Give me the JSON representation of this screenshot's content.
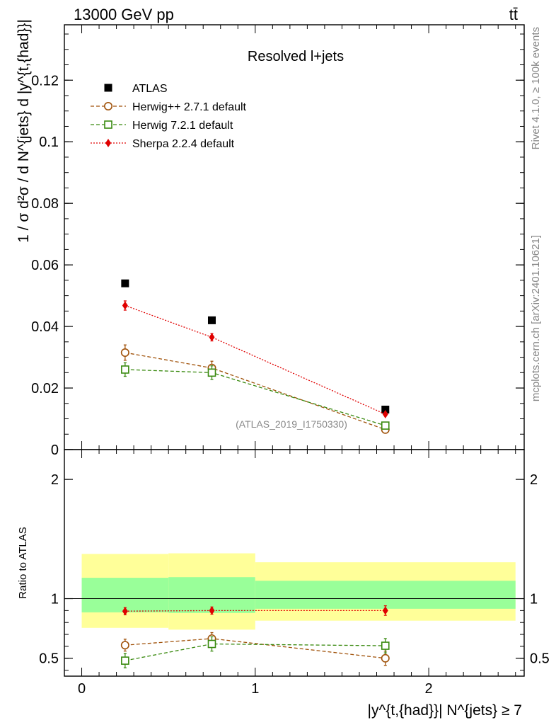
{
  "header": {
    "energy_label": "13000 GeV pp",
    "process_label": "tt̄",
    "side_rivet": "Rivet 4.1.0, ≥ 100k events",
    "side_mcplots": "mcplots.cern.ch [arXiv:2401.10621]",
    "analysis_label": "(ATLAS_2019_I1750330)"
  },
  "chart_data": [
    {
      "type": "line",
      "panel": "main",
      "title": "Resolved l+jets",
      "ylabel": "1 / σ d²σ / d N^{jets} d |y^{t,{had}}|",
      "xlim": [
        -0.1,
        2.55
      ],
      "ylim": [
        0,
        0.138
      ],
      "yticks": [
        0,
        0.02,
        0.04,
        0.06,
        0.08,
        0.1,
        0.12
      ],
      "ytick_labels": [
        "0",
        "0.02",
        "0.04",
        "0.06",
        "0.08",
        "0.1",
        "0.12"
      ],
      "x": [
        0.25,
        0.75,
        1.75
      ],
      "series": [
        {
          "name": "ATLAS",
          "values": [
            0.054,
            0.042,
            0.013
          ],
          "color": "#000000",
          "marker": "square-filled",
          "line": "none",
          "errors": [
            0.0008,
            0.0006,
            0.0004
          ]
        },
        {
          "name": "Herwig++ 2.7.1 default",
          "values": [
            0.0315,
            0.0265,
            0.0065
          ],
          "color": "#a0520a",
          "marker": "circle-open",
          "line": "dashed",
          "errors": [
            0.0025,
            0.0022,
            0.0008
          ]
        },
        {
          "name": "Herwig 7.2.1 default",
          "values": [
            0.026,
            0.025,
            0.0078
          ],
          "color": "#3a8a10",
          "marker": "square-open",
          "line": "dashed",
          "errors": [
            0.0022,
            0.0022,
            0.0008
          ]
        },
        {
          "name": "Sherpa 2.2.4 default",
          "values": [
            0.0468,
            0.0365,
            0.0115
          ],
          "color": "#e00000",
          "marker": "diamond-filled",
          "line": "dotted",
          "errors": [
            0.0015,
            0.0012,
            0.0005
          ]
        }
      ]
    },
    {
      "type": "line",
      "panel": "ratio",
      "ylabel": "Ratio to ATLAS",
      "xlabel": "|y^{t,{had}}| N^{jets} ≥ 7",
      "xlim": [
        -0.1,
        2.55
      ],
      "ylim": [
        0.35,
        2.25
      ],
      "yticks": [
        0.5,
        1,
        2
      ],
      "ytick_labels": [
        "0.5",
        "1",
        "2"
      ],
      "xticks": [
        0,
        1,
        2
      ],
      "xtick_labels": [
        "0",
        "1",
        "2"
      ],
      "x": [
        0.25,
        0.75,
        1.75
      ],
      "bins": [
        [
          0,
          0.5
        ],
        [
          0.5,
          1.0
        ],
        [
          1.0,
          2.5
        ]
      ],
      "band_inner": [
        [
          0.885,
          1.175
        ],
        [
          0.88,
          1.18
        ],
        [
          0.915,
          1.15
        ]
      ],
      "band_outer": [
        [
          0.755,
          1.375
        ],
        [
          0.74,
          1.38
        ],
        [
          0.815,
          1.305
        ]
      ],
      "series": [
        {
          "name": "Herwig++ 2.7.1 default",
          "values": [
            0.61,
            0.665,
            0.5
          ],
          "color": "#a0520a",
          "marker": "circle-open",
          "line": "dashed",
          "errors": [
            0.05,
            0.05,
            0.06
          ]
        },
        {
          "name": "Herwig 7.2.1 default",
          "values": [
            0.48,
            0.62,
            0.605
          ],
          "color": "#3a8a10",
          "marker": "square-open",
          "line": "dashed",
          "errors": [
            0.06,
            0.06,
            0.06
          ]
        },
        {
          "name": "Sherpa 2.2.4 default",
          "values": [
            0.895,
            0.9,
            0.9
          ],
          "color": "#e00000",
          "marker": "diamond-filled",
          "line": "dotted",
          "errors": [
            0.03,
            0.03,
            0.04
          ]
        }
      ]
    }
  ]
}
